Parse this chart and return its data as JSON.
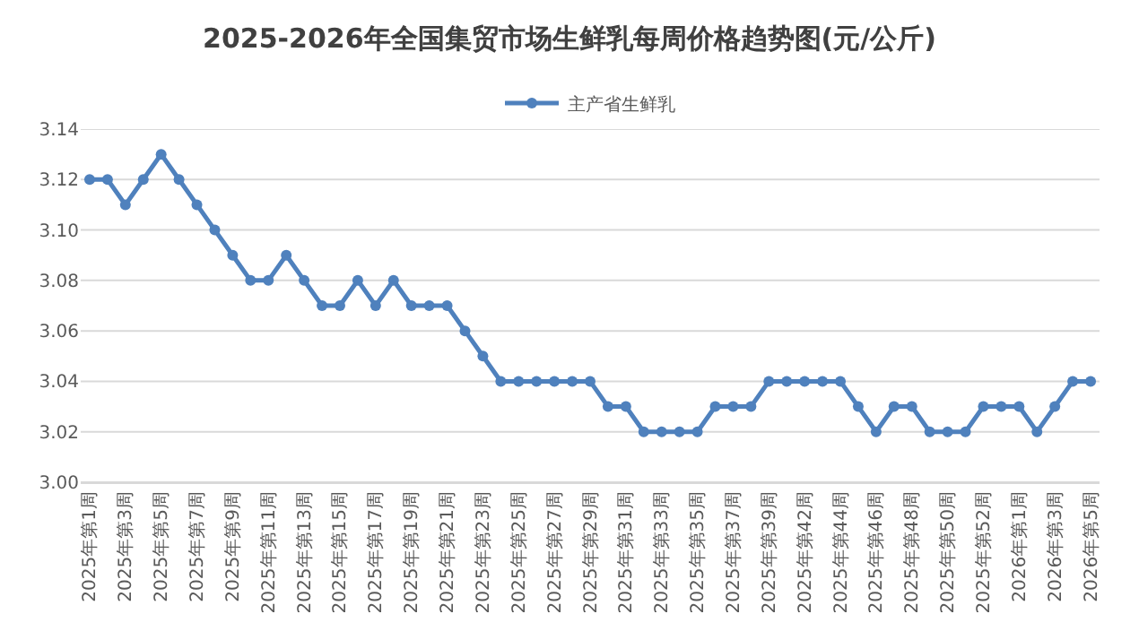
{
  "chart_data": {
    "type": "line",
    "title": "2025-2026年全国集贸市场生鲜乳每周价格趋势图(元/公斤)",
    "categories": [
      "2025年第1周",
      null,
      "2025年第3周",
      null,
      "2025年第5周",
      null,
      "2025年第7周",
      null,
      "2025年第9周",
      null,
      "2025年第11周",
      null,
      "2025年第13周",
      null,
      "2025年第15周",
      null,
      "2025年第17周",
      null,
      "2025年第19周",
      null,
      "2025年第21周",
      null,
      "2025年第23周",
      null,
      "2025年第25周",
      null,
      "2025年第27周",
      null,
      "2025年第29周",
      null,
      "2025年第31周",
      null,
      "2025年第33周",
      null,
      "2025年第35周",
      null,
      "2025年第37周",
      null,
      "2025年第39周",
      null,
      "2025年第42周",
      null,
      "2025年第44周",
      null,
      "2025年第46周",
      null,
      "2025年第48周",
      null,
      "2025年第50周",
      null,
      "2025年第52周",
      null,
      "2026年第1周",
      null,
      "2026年第3周",
      null,
      "2026年第5周"
    ],
    "series": [
      {
        "name": "主产省生鲜乳",
        "color": "#4f81bd",
        "values": [
          3.12,
          3.12,
          3.11,
          3.12,
          3.13,
          3.12,
          3.11,
          3.1,
          3.09,
          3.08,
          3.08,
          3.09,
          3.08,
          3.07,
          3.07,
          3.08,
          3.07,
          3.08,
          3.07,
          3.07,
          3.07,
          3.06,
          3.05,
          3.04,
          3.04,
          3.04,
          3.04,
          3.04,
          3.04,
          3.03,
          3.03,
          3.02,
          3.02,
          3.02,
          3.02,
          3.03,
          3.03,
          3.03,
          3.04,
          3.04,
          3.04,
          3.04,
          3.04,
          3.03,
          3.02,
          3.03,
          3.03,
          3.02,
          3.02,
          3.02,
          3.03,
          3.03,
          3.03,
          3.02,
          3.03,
          3.04,
          3.04
        ]
      }
    ],
    "ylim": [
      3.0,
      3.14
    ],
    "yticks": [
      {
        "value": 3.0,
        "label": "3.00"
      },
      {
        "value": 3.02,
        "label": "3.02"
      },
      {
        "value": 3.04,
        "label": "3.04"
      },
      {
        "value": 3.06,
        "label": "3.06"
      },
      {
        "value": 3.08,
        "label": "3.08"
      },
      {
        "value": 3.1,
        "label": "3.10"
      },
      {
        "value": 3.12,
        "label": "3.12"
      },
      {
        "value": 3.14,
        "label": "3.14"
      }
    ],
    "grid": "y",
    "legend": "top",
    "marker": "circle",
    "line_style": "solid"
  }
}
